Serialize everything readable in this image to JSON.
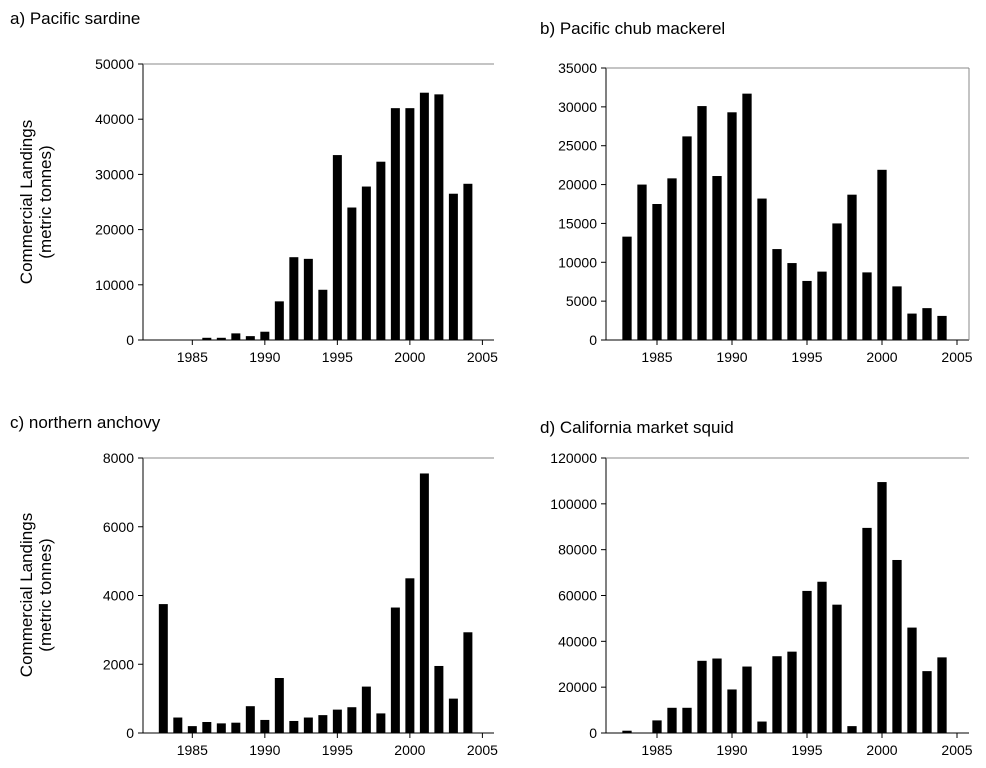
{
  "chart_data": [
    {
      "type": "bar",
      "title": "a) Pacific sardine",
      "ylabel": [
        "Commercial Landings",
        "(metric tonnes)"
      ],
      "ylim": [
        0,
        50000
      ],
      "yticks": [
        "0",
        "10000",
        "20000",
        "30000",
        "40000",
        "50000"
      ],
      "xticks": [
        "1985",
        "1990",
        "1995",
        "2000",
        "2005"
      ],
      "x": [
        1983,
        1984,
        1985,
        1986,
        1987,
        1988,
        1989,
        1990,
        1991,
        1992,
        1993,
        1994,
        1995,
        1996,
        1997,
        1998,
        1999,
        2000,
        2001,
        2002,
        2003,
        2004
      ],
      "values": [
        0,
        0,
        0,
        400,
        400,
        1200,
        700,
        1500,
        7000,
        15000,
        14700,
        9100,
        33500,
        24000,
        27800,
        32300,
        42000,
        42000,
        44800,
        44500,
        26500,
        28300
      ]
    },
    {
      "type": "bar",
      "title": "b) Pacific chub mackerel",
      "ylabel": [],
      "ylim": [
        0,
        35000
      ],
      "yticks": [
        "0",
        "5000",
        "10000",
        "15000",
        "20000",
        "25000",
        "30000",
        "35000"
      ],
      "xticks": [
        "1985",
        "1990",
        "1995",
        "2000",
        "2005"
      ],
      "x": [
        1983,
        1984,
        1985,
        1986,
        1987,
        1988,
        1989,
        1990,
        1991,
        1992,
        1993,
        1994,
        1995,
        1996,
        1997,
        1998,
        1999,
        2000,
        2001,
        2002,
        2003,
        2004
      ],
      "values": [
        13300,
        20000,
        17500,
        20800,
        26200,
        30100,
        21100,
        29300,
        31700,
        18200,
        11700,
        9900,
        7600,
        8800,
        15000,
        18700,
        8700,
        21900,
        6900,
        3400,
        4100,
        3100
      ]
    },
    {
      "type": "bar",
      "title": "c) northern anchovy",
      "ylabel": [
        "Commercial Landings",
        "(metric tonnes)"
      ],
      "ylim": [
        0,
        8000
      ],
      "yticks": [
        "0",
        "2000",
        "4000",
        "6000",
        "8000"
      ],
      "xticks": [
        "1985",
        "1990",
        "1995",
        "2000",
        "2005"
      ],
      "x": [
        1983,
        1984,
        1985,
        1986,
        1987,
        1988,
        1989,
        1990,
        1991,
        1992,
        1993,
        1994,
        1995,
        1996,
        1997,
        1998,
        1999,
        2000,
        2001,
        2002,
        2003,
        2004
      ],
      "values": [
        3750,
        450,
        200,
        320,
        280,
        300,
        780,
        380,
        1600,
        350,
        450,
        520,
        680,
        750,
        1350,
        570,
        3650,
        4500,
        7550,
        1950,
        1000,
        2930
      ]
    },
    {
      "type": "bar",
      "title": "d) California market squid",
      "ylabel": [],
      "ylim": [
        0,
        120000
      ],
      "yticks": [
        "0",
        "20000",
        "40000",
        "60000",
        "80000",
        "100000",
        "120000"
      ],
      "xticks": [
        "1985",
        "1990",
        "1995",
        "2000",
        "2005"
      ],
      "x": [
        1983,
        1984,
        1985,
        1986,
        1987,
        1988,
        1989,
        1990,
        1991,
        1992,
        1993,
        1994,
        1995,
        1996,
        1997,
        1998,
        1999,
        2000,
        2001,
        2002,
        2003,
        2004
      ],
      "values": [
        1000,
        0,
        5500,
        11000,
        11000,
        31500,
        32500,
        19000,
        29000,
        5000,
        33500,
        35500,
        62000,
        66000,
        56000,
        3000,
        89500,
        109500,
        75500,
        46000,
        27000,
        33000
      ]
    }
  ]
}
